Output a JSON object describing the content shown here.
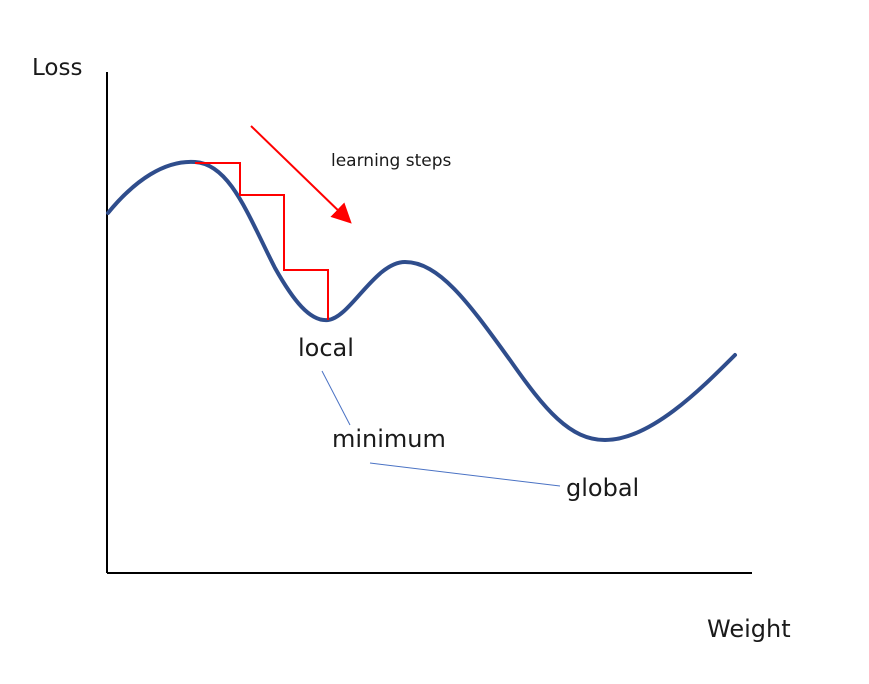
{
  "diagram": {
    "y_axis_label": "Loss",
    "x_axis_label": "Weight",
    "arrow_label": "learning steps",
    "local_label": "local",
    "minimum_label": "minimum",
    "global_label": "global"
  },
  "colors": {
    "curve": "#2f4d8c",
    "steps": "#ff0000",
    "arrow": "#ff0000",
    "axes": "#000000",
    "connector": "#4a72c4"
  }
}
